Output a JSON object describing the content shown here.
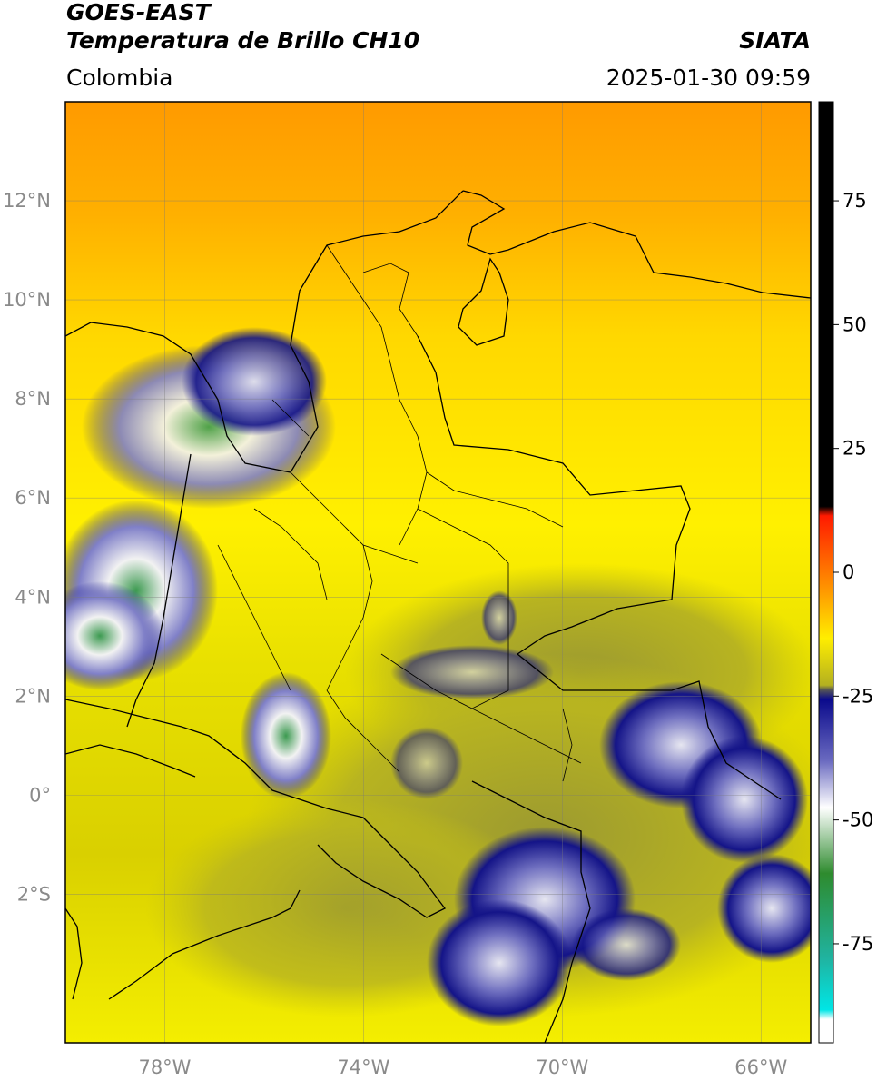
{
  "header": {
    "satellite": "GOES-EAST",
    "product": "Temperatura de Brillo CH10",
    "brand": "SIATA",
    "region": "Colombia",
    "timestamp": "2025-01-30 09:59"
  },
  "map": {
    "lon_range": [
      -80,
      -65
    ],
    "lat_range": [
      -5,
      14
    ],
    "lon_ticks": [
      {
        "value": -78,
        "label": "78°W"
      },
      {
        "value": -74,
        "label": "74°W"
      },
      {
        "value": -70,
        "label": "70°W"
      },
      {
        "value": -66,
        "label": "66°W"
      }
    ],
    "lat_ticks": [
      {
        "value": 12,
        "label": "12°N"
      },
      {
        "value": 10,
        "label": "10°N"
      },
      {
        "value": 8,
        "label": "8°N"
      },
      {
        "value": 6,
        "label": "6°N"
      },
      {
        "value": 4,
        "label": "4°N"
      },
      {
        "value": 2,
        "label": "2°N"
      },
      {
        "value": 0,
        "label": "0°"
      },
      {
        "value": -2,
        "label": "2°S"
      }
    ]
  },
  "colorbar": {
    "range": [
      -95,
      95
    ],
    "ticks": [
      {
        "value": 75,
        "label": "75"
      },
      {
        "value": 50,
        "label": "50"
      },
      {
        "value": 25,
        "label": "25"
      },
      {
        "value": 0,
        "label": "0"
      },
      {
        "value": -25,
        "label": "-25"
      },
      {
        "value": -50,
        "label": "-50"
      },
      {
        "value": -75,
        "label": "-75"
      }
    ],
    "colors": {
      "black": "#000000",
      "red": "#ff1a00",
      "orange": "#ff9900",
      "yellow": "#ffee00",
      "olive": "#b3b020",
      "gray": "#555555",
      "navy": "#0a0a8c",
      "white": "#ffffff",
      "green": "#2e8b2e",
      "teal": "#20b3a0",
      "cyan": "#00e6e6"
    }
  }
}
